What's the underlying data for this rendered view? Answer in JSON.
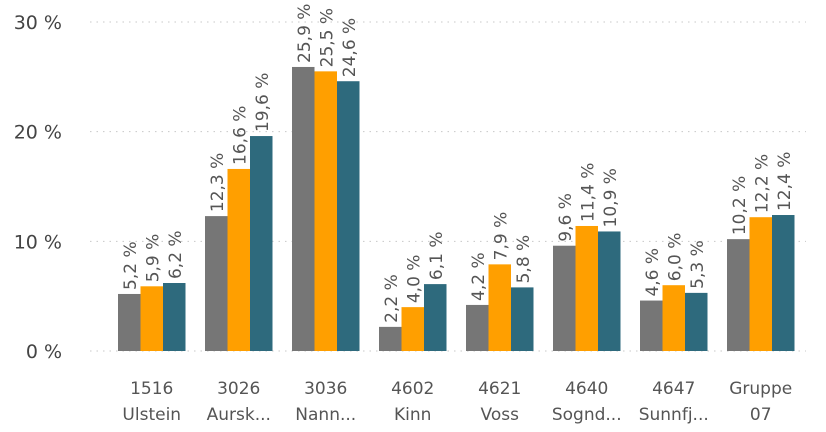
{
  "chart_data": {
    "type": "bar",
    "title": "",
    "xlabel": "",
    "ylabel": "",
    "ylim": [
      0,
      30
    ],
    "yticks": [
      {
        "value": 0,
        "label": "0 %"
      },
      {
        "value": 10,
        "label": "10 %"
      },
      {
        "value": 20,
        "label": "20 %"
      },
      {
        "value": 30,
        "label": "30 %"
      }
    ],
    "grid": true,
    "legend": "none",
    "categories": [
      {
        "line1": "1516",
        "line2": "Ulstein"
      },
      {
        "line1": "3026",
        "line2": "Aursk..."
      },
      {
        "line1": "3036",
        "line2": "Nann..."
      },
      {
        "line1": "4602",
        "line2": "Kinn"
      },
      {
        "line1": "4621",
        "line2": "Voss"
      },
      {
        "line1": "4640",
        "line2": "Sognd..."
      },
      {
        "line1": "4647",
        "line2": "Sunnfj..."
      },
      {
        "line1": "Gruppe",
        "line2": "07"
      }
    ],
    "series": [
      {
        "color": "#767676",
        "values": [
          5.2,
          12.3,
          25.9,
          2.2,
          4.2,
          9.6,
          4.6,
          10.2
        ],
        "labels": [
          "5,2 %",
          "12,3 %",
          "25,9 %",
          "2,2 %",
          "4,2 %",
          "9,6 %",
          "4,6 %",
          "10,2 %"
        ]
      },
      {
        "color": "#FF9F00",
        "values": [
          5.9,
          16.6,
          25.5,
          4.0,
          7.9,
          11.4,
          6.0,
          12.2
        ],
        "labels": [
          "5,9 %",
          "16,6 %",
          "25,5 %",
          "4,0 %",
          "7,9 %",
          "11,4 %",
          "6,0 %",
          "12,2 %"
        ]
      },
      {
        "color": "#2E6A7D",
        "values": [
          6.2,
          19.6,
          24.6,
          6.1,
          5.8,
          10.9,
          5.3,
          12.4
        ],
        "labels": [
          "6,2 %",
          "19,6 %",
          "24,6 %",
          "6,1 %",
          "5,8 %",
          "10,9 %",
          "5,3 %",
          "12,4 %"
        ]
      }
    ]
  }
}
